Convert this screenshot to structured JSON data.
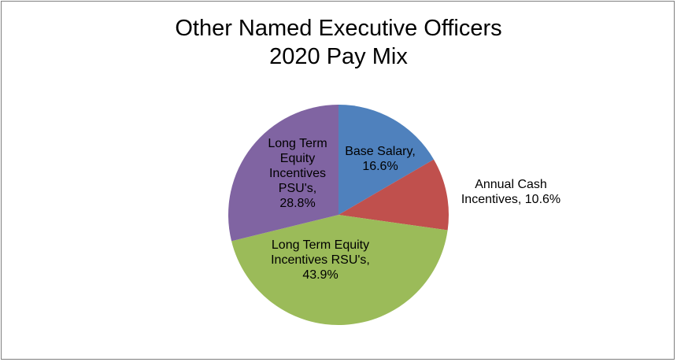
{
  "chart_data": {
    "type": "pie",
    "title": [
      "Other Named Executive Officers",
      "2020 Pay Mix"
    ],
    "legend": "none",
    "slices": [
      {
        "name": "Base Salary",
        "value": 16.6,
        "color": "#4f81bd",
        "label_lines": [
          "Base Salary,",
          "16.6%"
        ]
      },
      {
        "name": "Annual Cash Incentives",
        "value": 10.6,
        "color": "#c0504d",
        "label_lines": [
          "Annual Cash",
          "Incentives, 10.6%"
        ]
      },
      {
        "name": "Long Term Equity Incentives RSU's",
        "value": 43.9,
        "color": "#9bbb59",
        "label_lines": [
          "Long Term Equity",
          "Incentives RSU's,",
          "43.9%"
        ]
      },
      {
        "name": "Long Term Equity Incentives PSU's",
        "value": 28.8,
        "color": "#8064a2",
        "label_lines": [
          "Long Term",
          "Equity",
          "Incentives",
          "PSU's,",
          "28.8%"
        ]
      }
    ]
  }
}
